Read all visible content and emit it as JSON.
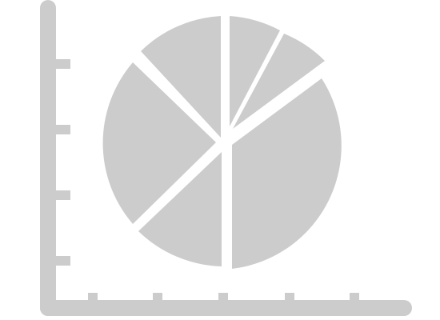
{
  "icon": {
    "name": "pie-chart-on-axes-icon",
    "color": "#cccccc",
    "background": "#ffffff"
  }
}
